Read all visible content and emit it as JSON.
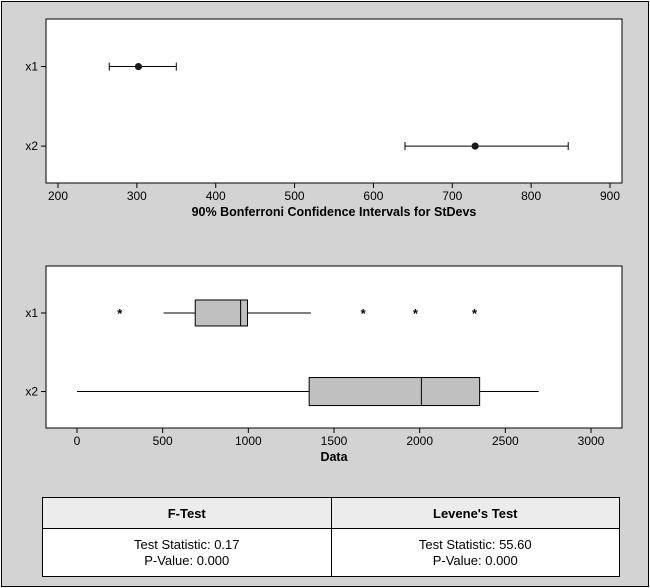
{
  "chart_data": [
    {
      "type": "interval",
      "categories": [
        "x1",
        "x2"
      ],
      "xlabel": "90% Bonferroni Confidence Intervals for StDevs",
      "xlim": [
        200,
        900
      ],
      "xticks": [
        200,
        300,
        400,
        500,
        600,
        700,
        800,
        900
      ],
      "intervals": [
        {
          "category": "x1",
          "lower": 265,
          "estimate": 302,
          "upper": 350
        },
        {
          "category": "x2",
          "lower": 640,
          "estimate": 729,
          "upper": 847
        }
      ],
      "grid": false
    },
    {
      "type": "boxplot",
      "categories": [
        "x1",
        "x2"
      ],
      "xlabel": "Data",
      "xlim": [
        0,
        3000
      ],
      "xticks": [
        0,
        500,
        1000,
        1500,
        2000,
        2500,
        3000
      ],
      "boxes": [
        {
          "category": "x1",
          "whisker_low": 505,
          "q1": 690,
          "median": 955,
          "q3": 995,
          "whisker_high": 1365,
          "outliers": [
            250,
            1670,
            1975,
            2320
          ]
        },
        {
          "category": "x2",
          "whisker_low": 0,
          "q1": 1355,
          "median": 2010,
          "q3": 2350,
          "whisker_high": 2695,
          "outliers": []
        }
      ],
      "grid": false
    }
  ],
  "tests": {
    "f_test": {
      "title": "F-Test",
      "statistic": "Test Statistic:  0.17",
      "pvalue": "P-Value:  0.000"
    },
    "levene": {
      "title": "Levene's Test",
      "statistic": "Test Statistic:  55.60",
      "pvalue": "P-Value:  0.000"
    }
  },
  "colors": {
    "box_fill": "#c0c0c0",
    "panel_bg": "#d3d3d3",
    "plot_bg": "#ffffff",
    "marker": "#1a1a1a"
  }
}
